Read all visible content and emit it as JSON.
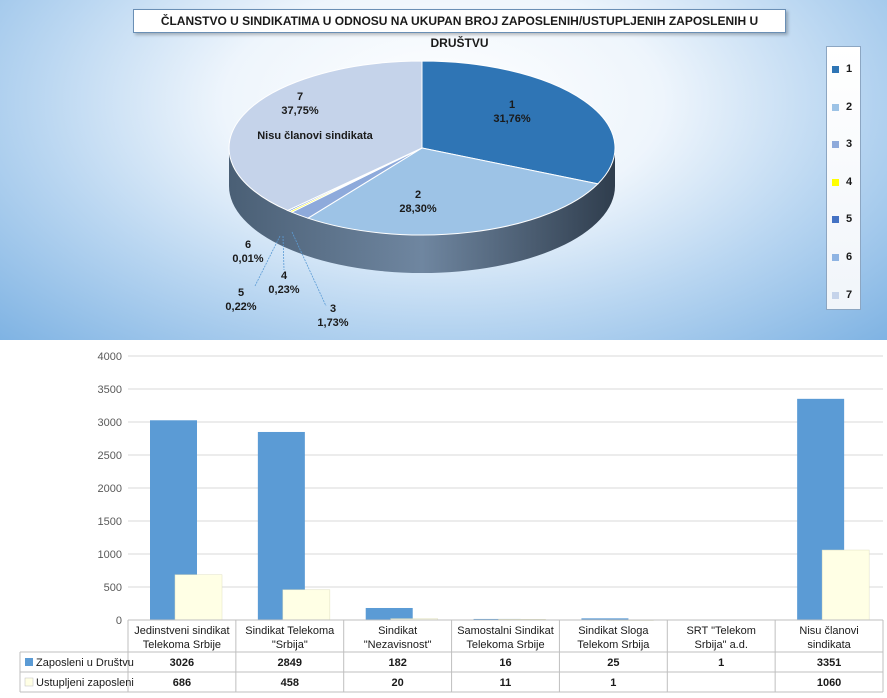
{
  "title": "ČLANSTVO U SINDIKATIMA U ODNOSU NA UKUPAN BROJ ZAPOSLENIH/USTUPLJENIH ZAPOSLENIH U DRUŠTVU",
  "pie": {
    "legend": [
      "1",
      "2",
      "3",
      "4",
      "5",
      "6",
      "7"
    ],
    "colors": [
      "#2f75b5",
      "#9dc3e6",
      "#8eaadb",
      "#ffff00",
      "#4472c4",
      "#8fb4e3",
      "#c5d3ea"
    ],
    "labels": [
      {
        "name": "1",
        "pct": "31,76%"
      },
      {
        "name": "2",
        "pct": "28,30%"
      },
      {
        "name": "3",
        "pct": "1,73%"
      },
      {
        "name": "4",
        "pct": "0,23%"
      },
      {
        "name": "5",
        "pct": "0,22%"
      },
      {
        "name": "6",
        "pct": "0,01%"
      },
      {
        "name": "7",
        "pct": "37,75%",
        "extra": "Nisu članovi sindikata"
      }
    ]
  },
  "chart_data": [
    {
      "type": "pie",
      "categories": [
        "1",
        "2",
        "3",
        "4",
        "5",
        "6",
        "7"
      ],
      "values": [
        31.76,
        28.3,
        1.73,
        0.23,
        0.22,
        0.01,
        37.75
      ],
      "title": "ČLANSTVO U SINDIKATIMA U ODNOSU NA UKUPAN BROJ ZAPOSLENIH/USTUPLJENIH ZAPOSLENIH U DRUŠTVU",
      "legend": "right"
    },
    {
      "type": "bar",
      "categories": [
        "Jedinstveni sindikat Telekoma Srbije",
        "Sindikat Telekoma \"Srbija\"",
        "Sindikat \"Nezavisnost\"",
        "Samostalni Sindikat Telekoma Srbije",
        "Sindikat Sloga Telekom Srbija",
        "SRT \"Telekom Srbija\" a.d.",
        "Nisu članovi sindikata"
      ],
      "category_lines": [
        [
          "Jedinstveni sindikat",
          "Telekoma Srbije"
        ],
        [
          "Sindikat Telekoma",
          "\"Srbija\""
        ],
        [
          "Sindikat",
          "\"Nezavisnost\""
        ],
        [
          "Samostalni Sindikat",
          "Telekoma Srbije"
        ],
        [
          "Sindikat Sloga",
          "Telekom Srbija"
        ],
        [
          "SRT \"Telekom",
          "Srbija\" a.d."
        ],
        [
          "Nisu članovi",
          "sindikata"
        ]
      ],
      "series": [
        {
          "name": "Zaposleni u Društvu",
          "values": [
            3026,
            2849,
            182,
            16,
            25,
            1,
            3351
          ],
          "labels": [
            "3026",
            "2849",
            "182",
            "16",
            "25",
            "1",
            "3351"
          ],
          "color": "#5b9bd5"
        },
        {
          "name": "Ustupljeni zaposleni",
          "values": [
            686,
            458,
            20,
            11,
            1,
            null,
            1060
          ],
          "labels": [
            "686",
            "458",
            "20",
            "11",
            "1",
            "",
            "1060"
          ],
          "color": "#ffffe5"
        }
      ],
      "ylim": [
        0,
        4000
      ],
      "yticks": [
        "0",
        "500",
        "1000",
        "1500",
        "2000",
        "2500",
        "3000",
        "3500",
        "4000"
      ],
      "grid": true,
      "legend": "data-table"
    }
  ]
}
